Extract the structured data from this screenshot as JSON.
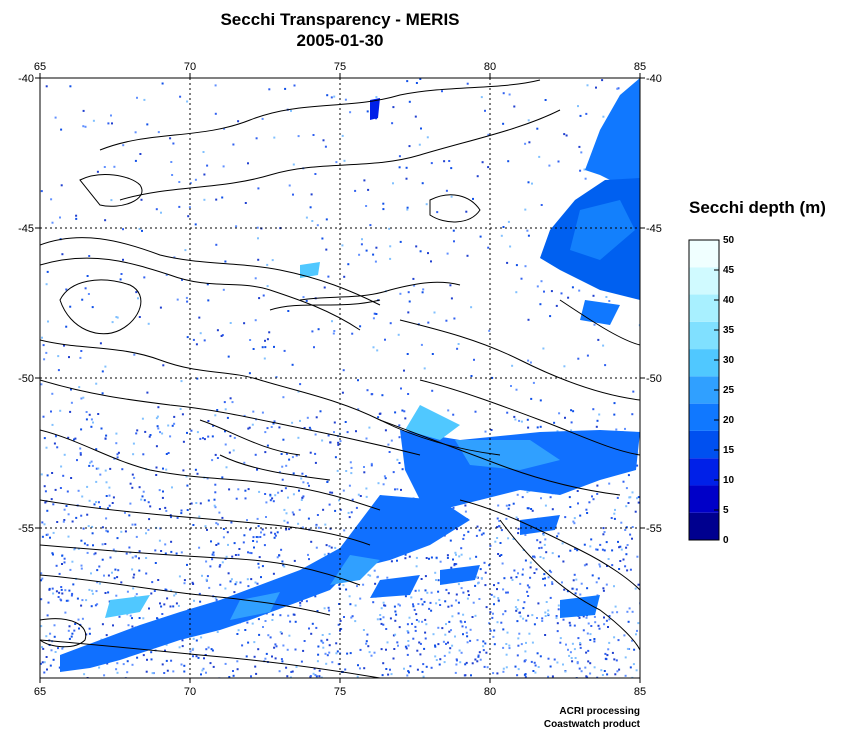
{
  "map": {
    "title": "Secchi Transparency - MERIS",
    "date": "2005-01-30",
    "lon_ticks": [
      65,
      70,
      75,
      80,
      85
    ],
    "lat_ticks": [
      -40,
      -45,
      -50,
      -55
    ],
    "lon_range": [
      65,
      85
    ],
    "lat_range": [
      -60,
      -40
    ],
    "grid": "dotted"
  },
  "legend": {
    "title": "Secchi depth (m)",
    "ticks": [
      0,
      5,
      10,
      15,
      20,
      25,
      30,
      35,
      40,
      45,
      50
    ],
    "colors": [
      "#00008f",
      "#0000c8",
      "#0020e8",
      "#0050f0",
      "#1078ff",
      "#30a0ff",
      "#50c8ff",
      "#80e0ff",
      "#a8f0ff",
      "#d0faff",
      "#f0ffff"
    ]
  },
  "credits": {
    "line1": "ACRI processing",
    "line2": "Coastwatch product"
  }
}
